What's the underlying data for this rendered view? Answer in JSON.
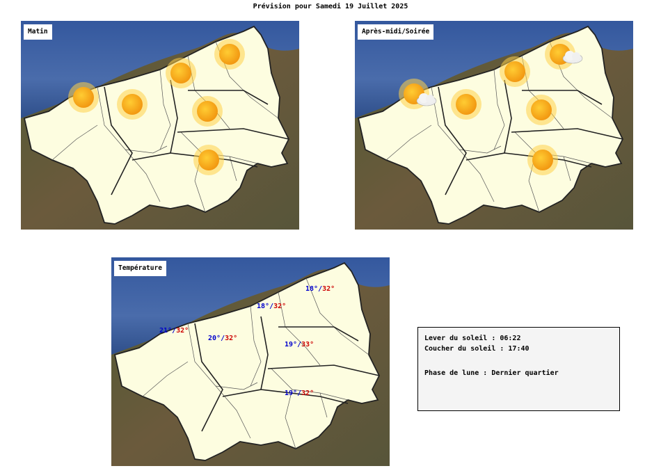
{
  "title": "Prévision pour Samedi 19 Juillet 2025",
  "maps": {
    "morning": {
      "label": "Matin",
      "icons": [
        "sun-icon",
        "sun-icon",
        "sun-icon",
        "sun-icon",
        "sun-icon",
        "sun-icon"
      ]
    },
    "afternoon": {
      "label": "Après-midi/Soirée",
      "icons": [
        "sun-cloud-icon",
        "sun-icon",
        "sun-icon",
        "sun-cloud-icon",
        "sun-icon",
        "sun-icon"
      ]
    },
    "temperature": {
      "label": "Température",
      "readings": [
        {
          "min": "18°",
          "max": "32°"
        },
        {
          "min": "18°",
          "max": "32°"
        },
        {
          "min": "21°",
          "max": "32°"
        },
        {
          "min": "20°",
          "max": "32°"
        },
        {
          "min": "19°",
          "max": "33°"
        },
        {
          "min": "19°",
          "max": "32°"
        }
      ]
    }
  },
  "info": {
    "sunrise": "Lever du soleil : 06:22",
    "sunset": "Coucher du soleil : 17:40",
    "moon": "Phase de lune : Dernier quartier"
  },
  "colors": {
    "sea": "#3f63a8",
    "land": "#fdfde0",
    "terrain": "#5b5a38",
    "sun": "#f7a21c",
    "min_temp": "#0000cc",
    "max_temp": "#cc0000"
  }
}
